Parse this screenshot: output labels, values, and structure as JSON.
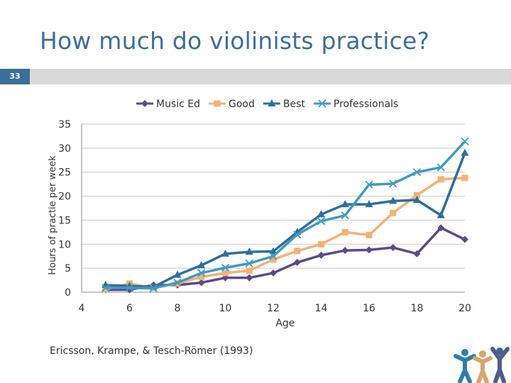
{
  "slide": {
    "title": "How much do violinists practice?",
    "number": "33",
    "citation": "Ericsson, Krampe, & Tesch-Römer (1993)",
    "accent_color": "#3a6f9a"
  },
  "chart_data": {
    "type": "line",
    "title": "",
    "xlabel": "Age",
    "ylabel": "Hours of practie per week",
    "xlim": [
      4,
      20
    ],
    "ylim": [
      0,
      35
    ],
    "xticks": [
      4,
      6,
      8,
      10,
      12,
      14,
      16,
      18,
      20
    ],
    "yticks": [
      0,
      5,
      10,
      15,
      20,
      25,
      30,
      35
    ],
    "grid": "horizontal",
    "legend_position": "top",
    "series": [
      {
        "name": "Music Ed",
        "color": "#5b4a8b",
        "marker": "diamond",
        "x": [
          5,
          6,
          7,
          8,
          9,
          10,
          11,
          12,
          13,
          14,
          15,
          16,
          17,
          18,
          19,
          20
        ],
        "y": [
          0.5,
          0.5,
          1.5,
          1.5,
          2.0,
          3.0,
          3.0,
          4.0,
          6.2,
          7.7,
          8.7,
          8.8,
          9.3,
          8.0,
          13.4,
          11.0
        ]
      },
      {
        "name": "Good",
        "color": "#f2b274",
        "marker": "square",
        "x": [
          5,
          6,
          7,
          8,
          9,
          10,
          11,
          12,
          13,
          14,
          15,
          16,
          17,
          18,
          19,
          20
        ],
        "y": [
          0.6,
          1.8,
          0.9,
          1.8,
          3.2,
          4.0,
          4.5,
          6.8,
          8.6,
          10.0,
          12.5,
          11.9,
          16.5,
          20.2,
          23.5,
          23.8
        ]
      },
      {
        "name": "Best",
        "color": "#2e6e9e",
        "marker": "triangle",
        "x": [
          5,
          6,
          7,
          8,
          9,
          10,
          11,
          12,
          13,
          14,
          15,
          16,
          17,
          18,
          19,
          20
        ],
        "y": [
          1.5,
          1.3,
          1.1,
          3.6,
          5.6,
          8.0,
          8.4,
          8.5,
          12.5,
          16.2,
          18.3,
          18.3,
          19.0,
          19.2,
          16.0,
          29.0
        ]
      },
      {
        "name": "Professionals",
        "color": "#3f9bc0",
        "marker": "x",
        "x": [
          5,
          6,
          7,
          8,
          9,
          10,
          11,
          12,
          13,
          14,
          15,
          16,
          17,
          18,
          19,
          20
        ],
        "y": [
          0.9,
          0.9,
          0.8,
          2.0,
          4.0,
          5.1,
          6.0,
          7.5,
          12.0,
          14.8,
          16.0,
          22.4,
          22.6,
          25.0,
          26.0,
          31.4
        ]
      }
    ]
  }
}
